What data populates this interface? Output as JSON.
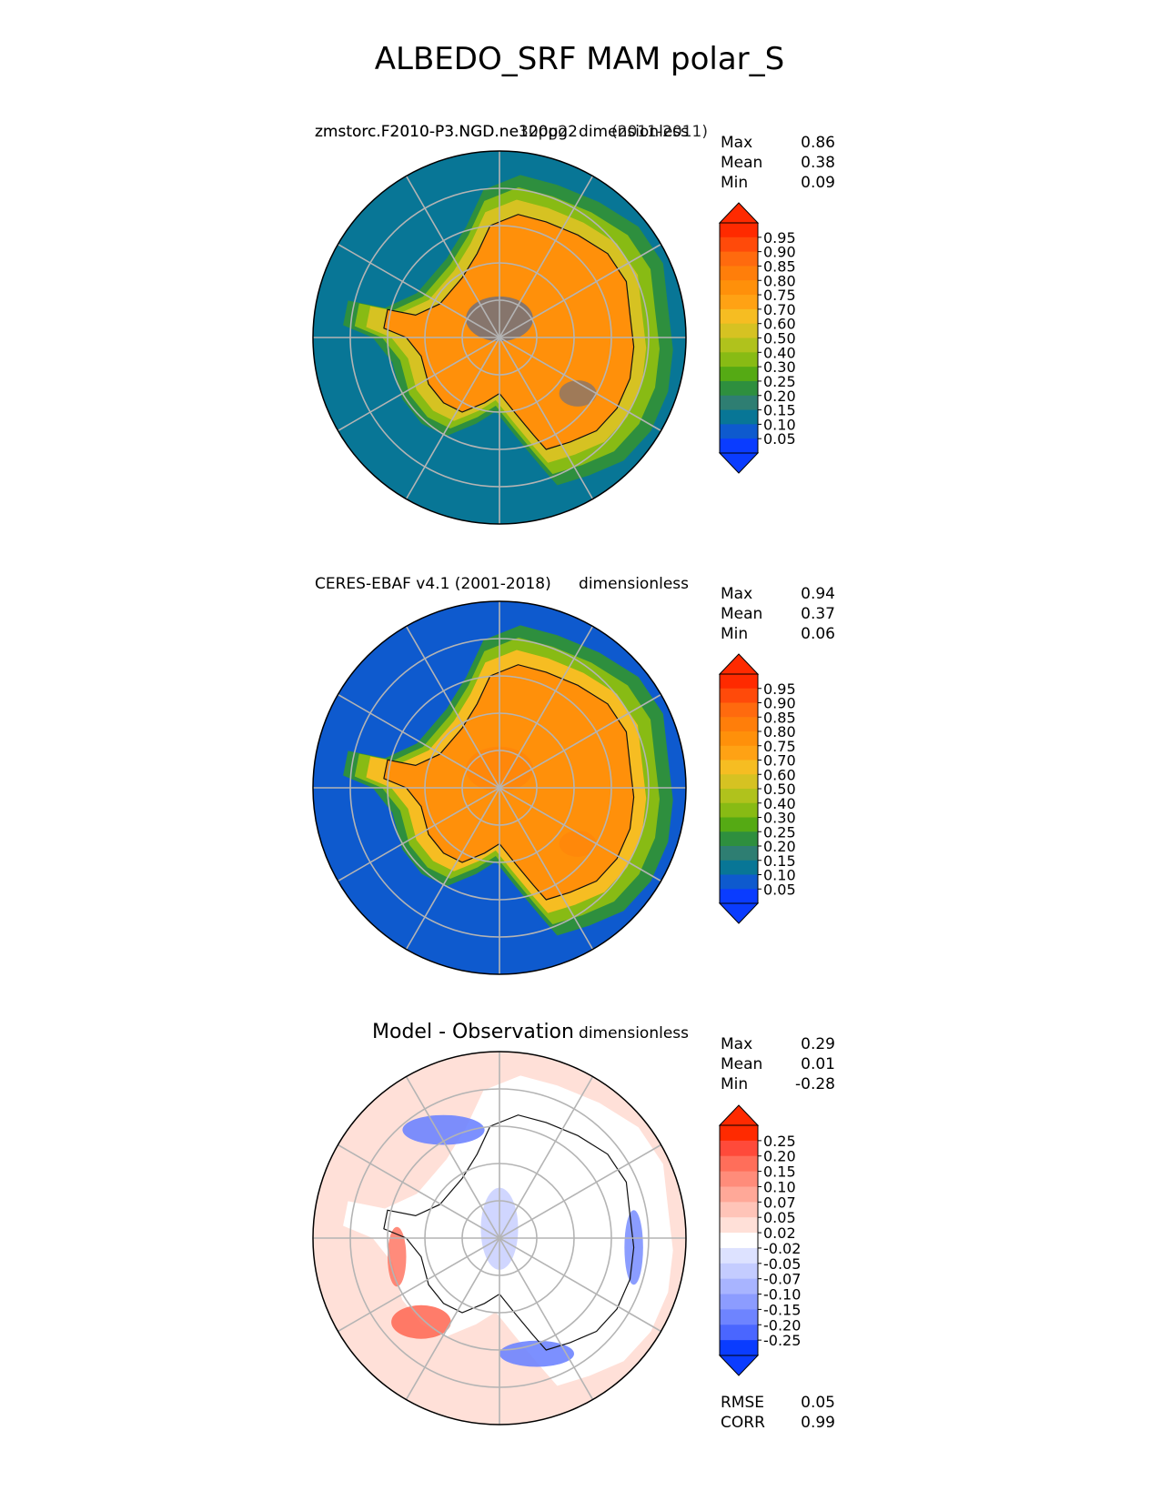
{
  "figure": {
    "title": "ALBEDO_SRF MAM polar_S"
  },
  "chart_data": [
    {
      "type": "polar-contour-map",
      "panel": "test",
      "title_left": "zmstorc.F2010-P3.NGD.ne120pg2",
      "title_left_overlap": "zmstorc.F2010-P3.NGD.ne30pg2",
      "title_right": "dimensionless",
      "title_right_overlap": "(2011-2011)",
      "stats": [
        {
          "label": "Max",
          "value": "0.86"
        },
        {
          "label": "Mean",
          "value": "0.38"
        },
        {
          "label": "Min",
          "value": "0.09"
        }
      ],
      "colorbar": {
        "ticks": [
          "0.95",
          "0.90",
          "0.85",
          "0.80",
          "0.75",
          "0.70",
          "0.60",
          "0.50",
          "0.40",
          "0.30",
          "0.25",
          "0.20",
          "0.15",
          "0.10",
          "0.05"
        ],
        "colors": [
          "#ff2a00",
          "#ff4a0a",
          "#ff6a0e",
          "#ff7e0a",
          "#ff900a",
          "#ffa214",
          "#f6bd22",
          "#d6c222",
          "#b0c21c",
          "#88bb14",
          "#55aa14",
          "#2e8f3e",
          "#2e7e72",
          "#087696",
          "#0e5ace",
          "#0a3cff"
        ],
        "extend_high": "#ff2a00",
        "extend_low": "#0a3cff"
      },
      "field": {
        "ocean": "#087696",
        "land": "#ff900a",
        "edge_1": "#d6c222",
        "edge_2": "#88bb14",
        "edge_3": "#2e8f3e",
        "patch": "#0e5ace"
      }
    },
    {
      "type": "polar-contour-map",
      "panel": "reference",
      "title_left": "CERES-EBAF v4.1 (2001-2018)",
      "title_right": "dimensionless",
      "stats": [
        {
          "label": "Max",
          "value": "0.94"
        },
        {
          "label": "Mean",
          "value": "0.37"
        },
        {
          "label": "Min",
          "value": "0.06"
        }
      ],
      "colorbar": {
        "ticks": [
          "0.95",
          "0.90",
          "0.85",
          "0.80",
          "0.75",
          "0.70",
          "0.60",
          "0.50",
          "0.40",
          "0.30",
          "0.25",
          "0.20",
          "0.15",
          "0.10",
          "0.05"
        ],
        "colors": [
          "#ff2a00",
          "#ff4a0a",
          "#ff6a0e",
          "#ff7e0a",
          "#ff900a",
          "#ffa214",
          "#f6bd22",
          "#d6c222",
          "#b0c21c",
          "#88bb14",
          "#55aa14",
          "#2e8f3e",
          "#2e7e72",
          "#087696",
          "#0e5ace",
          "#0a3cff"
        ],
        "extend_high": "#ff2a00",
        "extend_low": "#0a3cff"
      },
      "field": {
        "ocean": "#0e5ace",
        "land": "#ff900a",
        "edge_1": "#f6bd22",
        "edge_2": "#88bb14",
        "edge_3": "#2e8f3e",
        "patch": "#ff7e0a"
      }
    },
    {
      "type": "polar-contour-map",
      "panel": "difference",
      "title_left": "Model - Observation",
      "title_right": "dimensionless",
      "stats": [
        {
          "label": "Max",
          "value": "0.29"
        },
        {
          "label": "Mean",
          "value": "0.01"
        },
        {
          "label": "Min",
          "value": "-0.28"
        }
      ],
      "stats_bottom": [
        {
          "label": "RMSE",
          "value": "0.05"
        },
        {
          "label": "CORR",
          "value": "0.99"
        }
      ],
      "colorbar": {
        "ticks": [
          "0.25",
          "0.20",
          "0.15",
          "0.10",
          "0.07",
          "0.05",
          "0.02",
          "-0.02",
          "-0.05",
          "-0.07",
          "-0.10",
          "-0.15",
          "-0.20",
          "-0.25"
        ],
        "colors": [
          "#ff2a00",
          "#ff4a3a",
          "#ff6e5a",
          "#ff8c7a",
          "#ffa898",
          "#ffc4b8",
          "#ffe0d8",
          "#ffffff",
          "#dde2ff",
          "#c4ccff",
          "#a8b4ff",
          "#8c9cff",
          "#6e84ff",
          "#4a66ff",
          "#0a3cff"
        ],
        "extend_high": "#ff2a00",
        "extend_low": "#0a3cff"
      },
      "field": {
        "ocean": "#ffe0d8",
        "land": "#ffffff",
        "edge_1": "#ffffff",
        "edge_2": "#ffffff",
        "edge_3": "#ffffff",
        "patch": "#6e84ff",
        "patch_red": "#ff6e5a"
      }
    }
  ]
}
